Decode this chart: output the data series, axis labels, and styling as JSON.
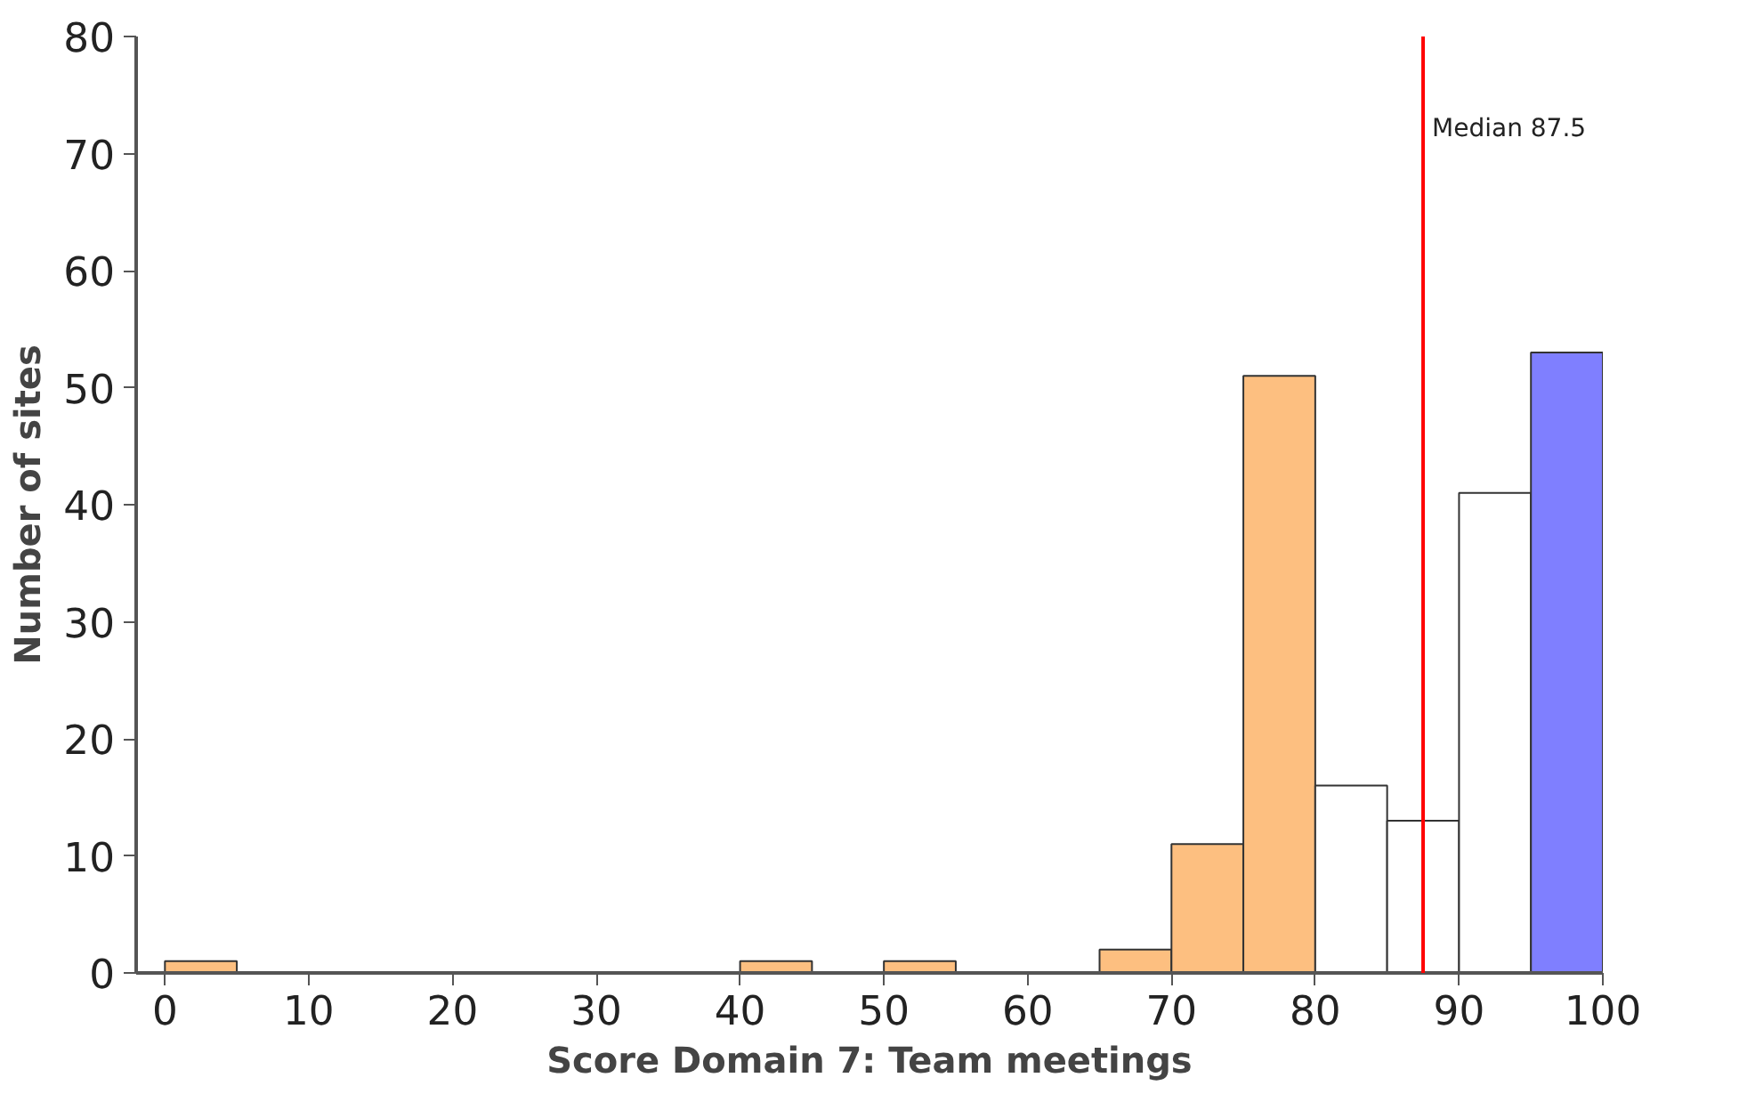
{
  "chart_data": {
    "type": "histogram",
    "xlabel": "Score Domain 7: Team meetings",
    "ylabel": "Number of sites",
    "bins": [
      0,
      5,
      10,
      15,
      20,
      25,
      30,
      35,
      40,
      45,
      50,
      55,
      60,
      65,
      70,
      75,
      80,
      85,
      90,
      95,
      100
    ],
    "values": [
      1,
      0,
      0,
      0,
      0,
      0,
      0,
      0,
      1,
      0,
      1,
      0,
      0,
      2,
      11,
      51,
      16,
      13,
      41,
      53
    ],
    "colors": [
      "#fdbf80",
      "#fdbf80",
      "#fdbf80",
      "#fdbf80",
      "#fdbf80",
      "#fdbf80",
      "#fdbf80",
      "#fdbf80",
      "#fdbf80",
      "#fdbf80",
      "#fdbf80",
      "#fdbf80",
      "#fdbf80",
      "#fdbf80",
      "#fdbf80",
      "#fdbf80",
      "#ffffff",
      "#ffffff",
      "#ffffff",
      "#7f7fff"
    ],
    "xlim": [
      -2,
      100
    ],
    "ylim": [
      0,
      80
    ],
    "xticks": [
      0,
      10,
      20,
      30,
      40,
      50,
      60,
      70,
      80,
      90,
      100
    ],
    "yticks": [
      0,
      10,
      20,
      30,
      40,
      50,
      60,
      70,
      80
    ],
    "ref_lines": [
      {
        "axis": "x",
        "value": 87.5,
        "label": "Median 87.5",
        "color": "#ff0000"
      }
    ],
    "grid": false
  }
}
